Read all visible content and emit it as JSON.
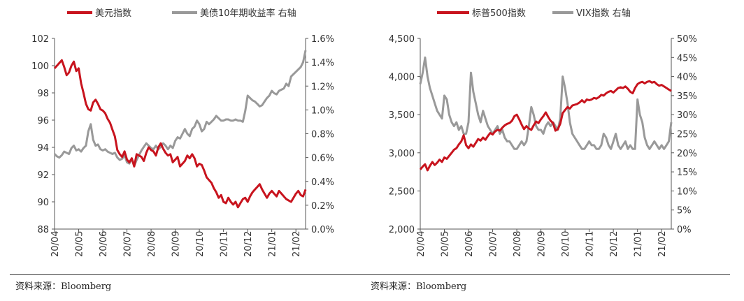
{
  "colors": {
    "red": "#c8141e",
    "gray": "#999999",
    "axis": "#555555",
    "text": "#333333"
  },
  "sources": {
    "left": "资料来源：Bloomberg",
    "right": "资料来源：Bloomberg"
  },
  "chart_data": [
    {
      "type": "line",
      "legend": [
        {
          "label": "美元指数",
          "color": "#c8141e"
        },
        {
          "label": "美债10年期收益率 右轴",
          "color": "#999999"
        }
      ],
      "x_ticks": [
        "20/04",
        "20/05",
        "20/06",
        "20/07",
        "20/08",
        "20/09",
        "20/10",
        "20/11",
        "20/12",
        "21/01",
        "21/02"
      ],
      "y_left": {
        "ticks": [
          "102",
          "100",
          "98",
          "96",
          "94",
          "92",
          "90",
          "88"
        ],
        "min": 88,
        "max": 102
      },
      "y_right": {
        "ticks": [
          "1.6%",
          "1.4%",
          "1.2%",
          "1.0%",
          "0.8%",
          "0.6%",
          "0.4%",
          "0.2%",
          "0.0%"
        ],
        "min": 0,
        "max": 1.6
      },
      "series": [
        {
          "name": "美元指数",
          "axis": "left",
          "x": [
            0,
            0.1,
            0.2,
            0.3,
            0.4,
            0.5,
            0.6,
            0.7,
            0.8,
            0.9,
            1.0,
            1.1,
            1.2,
            1.3,
            1.4,
            1.5,
            1.6,
            1.7,
            1.8,
            1.9,
            2.0,
            2.1,
            2.2,
            2.3,
            2.4,
            2.5,
            2.6,
            2.7,
            2.8,
            2.9,
            3.0,
            3.1,
            3.2,
            3.3,
            3.4,
            3.5,
            3.6,
            3.7,
            3.8,
            3.9,
            4.0,
            4.1,
            4.2,
            4.3,
            4.4,
            4.5,
            4.6,
            4.7,
            4.8,
            4.9,
            5.0,
            5.1,
            5.2,
            5.3,
            5.4,
            5.5,
            5.6,
            5.7,
            5.8,
            5.9,
            6.0,
            6.1,
            6.2,
            6.3,
            6.4,
            6.5,
            6.6,
            6.7,
            6.8,
            6.9,
            7.0,
            7.1,
            7.2,
            7.3,
            7.4,
            7.5,
            7.6,
            7.7,
            7.8,
            7.9,
            8.0,
            8.1,
            8.2,
            8.3,
            8.4,
            8.5,
            8.6,
            8.7,
            8.8,
            8.9,
            9.0,
            9.1,
            9.2,
            9.3,
            9.4,
            9.5,
            9.6,
            9.7,
            9.8,
            9.9,
            10.0,
            10.1,
            10.2,
            10.3,
            10.4
          ],
          "values": [
            99.8,
            100.0,
            100.2,
            100.4,
            99.9,
            99.3,
            99.5,
            100.0,
            100.3,
            99.6,
            99.8,
            98.7,
            98.0,
            97.2,
            96.8,
            96.7,
            97.3,
            97.5,
            97.2,
            96.8,
            96.7,
            96.5,
            96.1,
            95.8,
            95.3,
            94.8,
            93.8,
            93.5,
            93.3,
            93.7,
            93.1,
            92.9,
            93.2,
            92.6,
            93.5,
            93.4,
            93.3,
            93.0,
            93.6,
            94.0,
            93.8,
            93.7,
            93.4,
            94.0,
            94.3,
            93.9,
            93.6,
            93.4,
            93.5,
            92.9,
            93.1,
            93.3,
            92.6,
            92.8,
            93.0,
            93.4,
            93.2,
            93.5,
            93.2,
            92.6,
            92.8,
            92.7,
            92.3,
            91.8,
            91.6,
            91.4,
            91.0,
            90.7,
            90.3,
            90.5,
            90.0,
            89.9,
            90.3,
            90.0,
            89.8,
            90.0,
            89.6,
            89.9,
            90.2,
            90.3,
            90.0,
            90.4,
            90.7,
            90.9,
            91.1,
            91.3,
            90.9,
            90.6,
            90.3,
            90.6,
            90.8,
            90.6,
            90.4,
            90.8,
            90.6,
            90.4,
            90.2,
            90.1,
            90.0,
            90.3,
            90.6,
            90.8,
            90.5,
            90.4,
            90.9
          ]
        },
        {
          "name": "美债10年期收益率 右轴",
          "axis": "right",
          "x": [
            0,
            0.1,
            0.2,
            0.3,
            0.4,
            0.5,
            0.6,
            0.7,
            0.8,
            0.9,
            1.0,
            1.1,
            1.2,
            1.3,
            1.4,
            1.5,
            1.6,
            1.7,
            1.8,
            1.9,
            2.0,
            2.1,
            2.2,
            2.3,
            2.4,
            2.5,
            2.6,
            2.7,
            2.8,
            2.9,
            3.0,
            3.1,
            3.2,
            3.3,
            3.4,
            3.5,
            3.6,
            3.7,
            3.8,
            3.9,
            4.0,
            4.1,
            4.2,
            4.3,
            4.4,
            4.5,
            4.6,
            4.7,
            4.8,
            4.9,
            5.0,
            5.1,
            5.2,
            5.3,
            5.4,
            5.5,
            5.6,
            5.7,
            5.8,
            5.9,
            6.0,
            6.1,
            6.2,
            6.3,
            6.4,
            6.5,
            6.6,
            6.7,
            6.8,
            6.9,
            7.0,
            7.1,
            7.2,
            7.3,
            7.4,
            7.5,
            7.6,
            7.7,
            7.8,
            7.9,
            8.0,
            8.1,
            8.2,
            8.3,
            8.4,
            8.5,
            8.6,
            8.7,
            8.8,
            8.9,
            9.0,
            9.1,
            9.2,
            9.3,
            9.4,
            9.5,
            9.6,
            9.7,
            9.8,
            9.9,
            10.0,
            10.1,
            10.2,
            10.3,
            10.4
          ],
          "values": [
            0.63,
            0.61,
            0.6,
            0.62,
            0.65,
            0.64,
            0.63,
            0.68,
            0.7,
            0.66,
            0.67,
            0.65,
            0.68,
            0.7,
            0.82,
            0.88,
            0.75,
            0.7,
            0.71,
            0.67,
            0.66,
            0.67,
            0.65,
            0.64,
            0.63,
            0.64,
            0.6,
            0.58,
            0.59,
            0.62,
            0.56,
            0.55,
            0.59,
            0.53,
            0.58,
            0.62,
            0.66,
            0.69,
            0.72,
            0.7,
            0.68,
            0.67,
            0.7,
            0.67,
            0.69,
            0.72,
            0.7,
            0.67,
            0.7,
            0.68,
            0.74,
            0.77,
            0.76,
            0.8,
            0.84,
            0.8,
            0.78,
            0.84,
            0.86,
            0.91,
            0.88,
            0.82,
            0.84,
            0.9,
            0.88,
            0.9,
            0.92,
            0.95,
            0.93,
            0.91,
            0.91,
            0.92,
            0.92,
            0.91,
            0.91,
            0.92,
            0.91,
            0.91,
            0.9,
            0.99,
            1.12,
            1.1,
            1.08,
            1.07,
            1.05,
            1.03,
            1.04,
            1.07,
            1.1,
            1.12,
            1.16,
            1.14,
            1.13,
            1.16,
            1.17,
            1.18,
            1.22,
            1.2,
            1.28,
            1.3,
            1.32,
            1.34,
            1.36,
            1.4,
            1.5
          ]
        }
      ]
    },
    {
      "type": "line",
      "legend": [
        {
          "label": "标普500指数",
          "color": "#c8141e"
        },
        {
          "label": "VIX指数 右轴",
          "color": "#999999"
        }
      ],
      "x_ticks": [
        "20/04",
        "20/05",
        "20/06",
        "20/07",
        "20/08",
        "20/09",
        "20/10",
        "20/11",
        "20/12",
        "21/01",
        "21/02"
      ],
      "y_left": {
        "ticks": [
          "4,500",
          "4,000",
          "3,500",
          "3,000",
          "2,500",
          "2,000"
        ],
        "min": 2000,
        "max": 4500
      },
      "y_right": {
        "ticks": [
          "50%",
          "45%",
          "40%",
          "35%",
          "30%",
          "25%",
          "20%",
          "15%",
          "10%",
          "5%",
          "0%"
        ],
        "min": 0,
        "max": 50
      },
      "series": [
        {
          "name": "标普500指数",
          "axis": "left",
          "x": [
            0,
            0.1,
            0.2,
            0.3,
            0.4,
            0.5,
            0.6,
            0.7,
            0.8,
            0.9,
            1.0,
            1.1,
            1.2,
            1.3,
            1.4,
            1.5,
            1.6,
            1.7,
            1.8,
            1.9,
            2.0,
            2.1,
            2.2,
            2.3,
            2.4,
            2.5,
            2.6,
            2.7,
            2.8,
            2.9,
            3.0,
            3.1,
            3.2,
            3.3,
            3.4,
            3.5,
            3.6,
            3.7,
            3.8,
            3.9,
            4.0,
            4.1,
            4.2,
            4.3,
            4.4,
            4.5,
            4.6,
            4.7,
            4.8,
            4.9,
            5.0,
            5.1,
            5.2,
            5.3,
            5.4,
            5.5,
            5.6,
            5.7,
            5.8,
            5.9,
            6.0,
            6.1,
            6.2,
            6.3,
            6.4,
            6.5,
            6.6,
            6.7,
            6.8,
            6.9,
            7.0,
            7.1,
            7.2,
            7.3,
            7.4,
            7.5,
            7.6,
            7.7,
            7.8,
            7.9,
            8.0,
            8.1,
            8.2,
            8.3,
            8.4,
            8.5,
            8.6,
            8.7,
            8.8,
            8.9,
            9.0,
            9.1,
            9.2,
            9.3,
            9.4,
            9.5,
            9.6,
            9.7,
            9.8,
            9.9,
            10.0,
            10.1,
            10.2,
            10.3,
            10.4
          ],
          "values": [
            2780,
            2820,
            2850,
            2770,
            2830,
            2880,
            2840,
            2870,
            2910,
            2880,
            2940,
            2920,
            2960,
            3000,
            3040,
            3060,
            3110,
            3150,
            3230,
            3100,
            3060,
            3110,
            3080,
            3130,
            3180,
            3160,
            3200,
            3170,
            3220,
            3260,
            3240,
            3280,
            3300,
            3290,
            3330,
            3360,
            3380,
            3390,
            3420,
            3480,
            3500,
            3440,
            3370,
            3310,
            3350,
            3320,
            3300,
            3360,
            3410,
            3390,
            3440,
            3480,
            3530,
            3470,
            3420,
            3390,
            3290,
            3310,
            3380,
            3520,
            3560,
            3600,
            3580,
            3620,
            3630,
            3640,
            3660,
            3690,
            3660,
            3700,
            3690,
            3700,
            3720,
            3710,
            3730,
            3760,
            3750,
            3780,
            3800,
            3810,
            3790,
            3820,
            3850,
            3860,
            3850,
            3870,
            3840,
            3800,
            3780,
            3850,
            3900,
            3920,
            3930,
            3910,
            3930,
            3940,
            3920,
            3930,
            3900,
            3880,
            3890,
            3870,
            3850,
            3830,
            3810
          ]
        },
        {
          "name": "VIX指数 右轴",
          "axis": "right",
          "x": [
            0,
            0.1,
            0.2,
            0.3,
            0.4,
            0.5,
            0.6,
            0.7,
            0.8,
            0.9,
            1.0,
            1.1,
            1.2,
            1.3,
            1.4,
            1.5,
            1.6,
            1.7,
            1.8,
            1.9,
            2.0,
            2.1,
            2.2,
            2.3,
            2.4,
            2.5,
            2.6,
            2.7,
            2.8,
            2.9,
            3.0,
            3.1,
            3.2,
            3.3,
            3.4,
            3.5,
            3.6,
            3.7,
            3.8,
            3.9,
            4.0,
            4.1,
            4.2,
            4.3,
            4.4,
            4.5,
            4.6,
            4.7,
            4.8,
            4.9,
            5.0,
            5.1,
            5.2,
            5.3,
            5.4,
            5.5,
            5.6,
            5.7,
            5.8,
            5.9,
            6.0,
            6.1,
            6.2,
            6.3,
            6.4,
            6.5,
            6.6,
            6.7,
            6.8,
            6.9,
            7.0,
            7.1,
            7.2,
            7.3,
            7.4,
            7.5,
            7.6,
            7.7,
            7.8,
            7.9,
            8.0,
            8.1,
            8.2,
            8.3,
            8.4,
            8.5,
            8.6,
            8.7,
            8.8,
            8.9,
            9.0,
            9.1,
            9.2,
            9.3,
            9.4,
            9.5,
            9.6,
            9.7,
            9.8,
            9.9,
            10.0,
            10.1,
            10.2,
            10.3,
            10.4
          ],
          "values": [
            38,
            41,
            45,
            40,
            37,
            35,
            33,
            31,
            30,
            29,
            35,
            34,
            30,
            28,
            27,
            28,
            26,
            27,
            25,
            25,
            28,
            41,
            36,
            33,
            30,
            28,
            31,
            29,
            27,
            26,
            25,
            26,
            27,
            25,
            26,
            24,
            23,
            23,
            22,
            21,
            21,
            22,
            23,
            22,
            23,
            27,
            32,
            30,
            27,
            26,
            26,
            25,
            27,
            28,
            27,
            28,
            27,
            26,
            29,
            40,
            37,
            33,
            28,
            25,
            24,
            23,
            22,
            21,
            21,
            22,
            23,
            22,
            22,
            21,
            21,
            22,
            25,
            24,
            22,
            21,
            23,
            25,
            22,
            21,
            22,
            23,
            21,
            22,
            21,
            21,
            34,
            30,
            28,
            24,
            22,
            21,
            22,
            23,
            22,
            21,
            22,
            21,
            22,
            23,
            28
          ]
        }
      ]
    }
  ]
}
